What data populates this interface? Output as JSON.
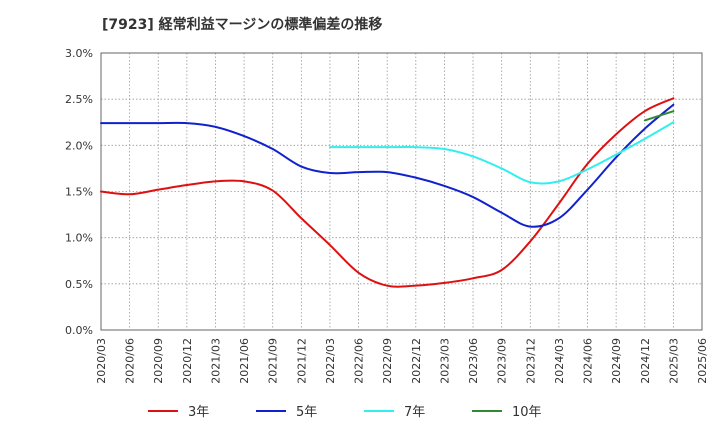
{
  "chart_data": {
    "type": "line",
    "title": "[7923]  経常利益マージンの標準偏差の推移",
    "xlabel": "",
    "ylabel": "",
    "ylim": [
      0,
      3.0
    ],
    "y_ticks": [
      "0.0%",
      "0.5%",
      "1.0%",
      "1.5%",
      "2.0%",
      "2.5%",
      "3.0%"
    ],
    "y_tick_values": [
      0,
      0.5,
      1.0,
      1.5,
      2.0,
      2.5,
      3.0
    ],
    "x_ticks": [
      "2020/03",
      "2020/06",
      "2020/09",
      "2020/12",
      "2021/03",
      "2021/06",
      "2021/09",
      "2021/12",
      "2022/03",
      "2022/06",
      "2022/09",
      "2022/12",
      "2023/03",
      "2023/06",
      "2023/09",
      "2023/12",
      "2024/03",
      "2024/06",
      "2024/09",
      "2024/12",
      "2025/03",
      "2025/06"
    ],
    "grid": true,
    "legend_position": "bottom",
    "series": [
      {
        "name": "3年",
        "color": "#dd1111",
        "x": [
          "2020/03",
          "2020/06",
          "2020/09",
          "2020/12",
          "2021/03",
          "2021/06",
          "2021/09",
          "2021/12",
          "2022/03",
          "2022/06",
          "2022/09",
          "2022/12",
          "2023/03",
          "2023/06",
          "2023/09",
          "2023/12",
          "2024/03",
          "2024/06",
          "2024/09",
          "2024/12",
          "2025/03"
        ],
        "values": [
          1.5,
          1.47,
          1.52,
          1.57,
          1.61,
          1.61,
          1.51,
          1.21,
          0.92,
          0.62,
          0.48,
          0.48,
          0.51,
          0.56,
          0.65,
          0.96,
          1.37,
          1.8,
          2.12,
          2.37,
          2.51
        ]
      },
      {
        "name": "5年",
        "color": "#1122cc",
        "x": [
          "2020/03",
          "2020/06",
          "2020/09",
          "2020/12",
          "2021/03",
          "2021/06",
          "2021/09",
          "2021/12",
          "2022/03",
          "2022/06",
          "2022/09",
          "2022/12",
          "2023/03",
          "2023/06",
          "2023/09",
          "2023/12",
          "2024/03",
          "2024/06",
          "2024/09",
          "2024/12",
          "2025/03"
        ],
        "values": [
          2.24,
          2.24,
          2.24,
          2.24,
          2.2,
          2.1,
          1.96,
          1.77,
          1.7,
          1.71,
          1.71,
          1.65,
          1.56,
          1.44,
          1.27,
          1.12,
          1.21,
          1.52,
          1.87,
          2.18,
          2.44
        ]
      },
      {
        "name": "7年",
        "color": "#33eeee",
        "x": [
          "2022/03",
          "2022/06",
          "2022/09",
          "2022/12",
          "2023/03",
          "2023/06",
          "2023/09",
          "2023/12",
          "2024/03",
          "2024/06",
          "2024/09",
          "2024/12",
          "2025/03"
        ],
        "values": [
          1.98,
          1.98,
          1.98,
          1.98,
          1.96,
          1.88,
          1.75,
          1.6,
          1.61,
          1.74,
          1.9,
          2.07,
          2.25
        ]
      },
      {
        "name": "10年",
        "color": "#338833",
        "x": [
          "2024/12",
          "2025/03"
        ],
        "values": [
          2.27,
          2.37
        ]
      }
    ]
  }
}
